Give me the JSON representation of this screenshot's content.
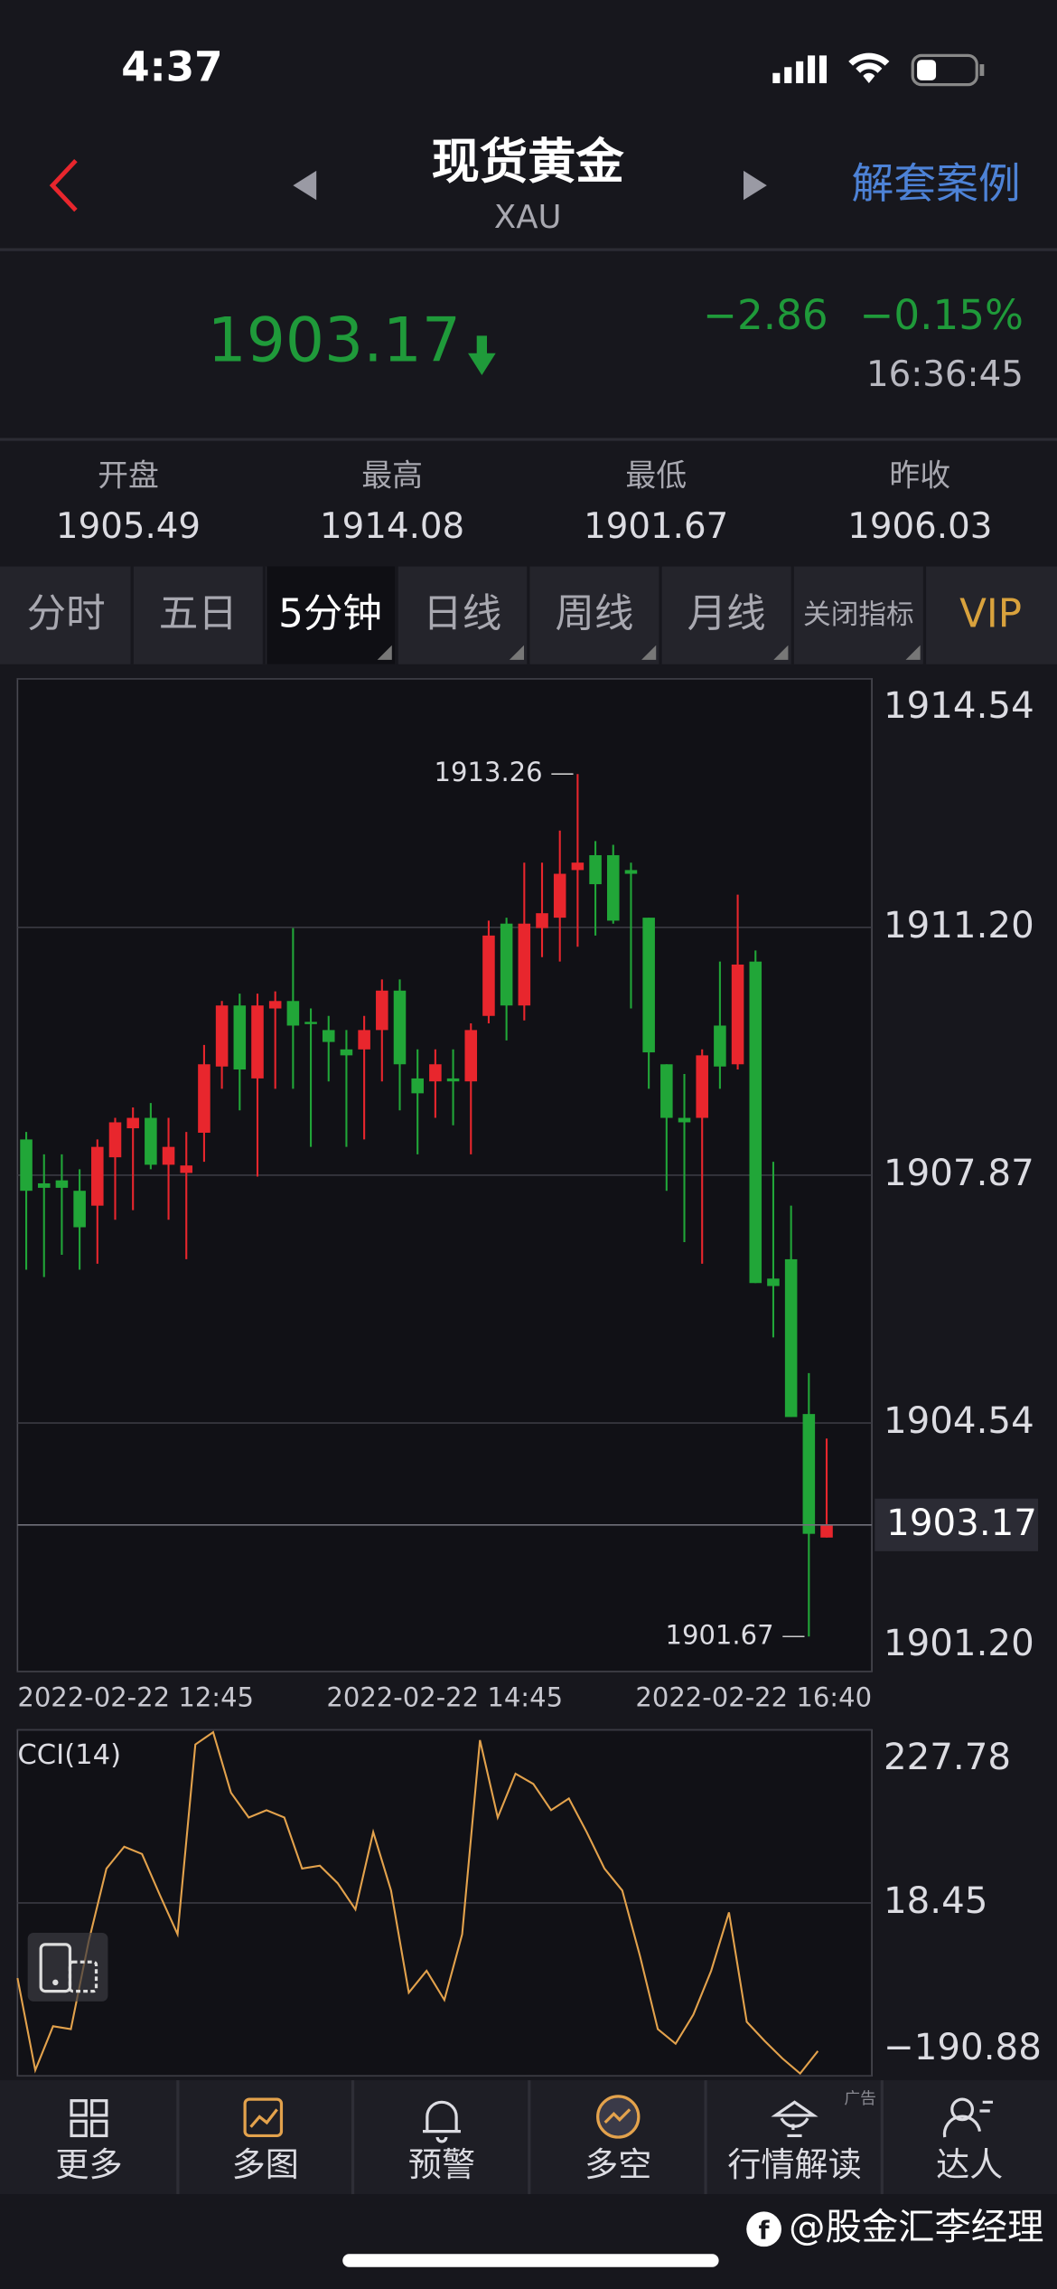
{
  "status_bar": {
    "time": "4:37"
  },
  "header": {
    "title": "现货黄金",
    "symbol": "XAU",
    "link": "解套案例"
  },
  "quote": {
    "price": "1903.17",
    "change": "−2.86",
    "change_pct": "−0.15%",
    "time": "16:36:45"
  },
  "stats": [
    {
      "label": "开盘",
      "value": "1905.49"
    },
    {
      "label": "最高",
      "value": "1914.08"
    },
    {
      "label": "最低",
      "value": "1901.67"
    },
    {
      "label": "昨收",
      "value": "1906.03"
    }
  ],
  "tabs": [
    "分时",
    "五日",
    "5分钟",
    "日线",
    "周线",
    "月线",
    "关闭指标",
    "VIP"
  ],
  "chart_data": [
    {
      "type": "candlestick",
      "x_tick_labels": [
        "2022-02-22 12:45",
        "2022-02-22 14:45",
        "2022-02-22 16:40"
      ],
      "up_color": "#e8262d",
      "down_color": "#21a638",
      "ylim": [
        1901.2,
        1914.54
      ],
      "yticks": [
        {
          "value": 1901.2,
          "label": "1901.20"
        },
        1904.54,
        1907.87,
        {
          "value": 1911.2,
          "label": "1911.20"
        },
        1914.54
      ],
      "grid": true,
      "open": [
        1908.35,
        1907.76,
        1907.8,
        1907.66,
        1907.46,
        1908.11,
        1908.5,
        1908.64,
        1908.01,
        1907.9,
        1908.44,
        1909.33,
        1910.15,
        1909.17,
        1910.11,
        1910.21,
        1909.93,
        1909.82,
        1909.56,
        1909.56,
        1909.82,
        1910.35,
        1909.17,
        1909.13,
        1909.17,
        1909.13,
        1910.01,
        1911.25,
        1910.15,
        1911.19,
        1911.33,
        1911.97,
        1912.17,
        1912.17,
        1911.97,
        1911.33,
        1909.36,
        1908.64,
        1908.64,
        1909.88,
        1909.36,
        1910.74,
        1906.48,
        1906.74,
        1904.66,
        1903.0
      ],
      "high": [
        1908.45,
        1908.15,
        1908.15,
        1907.95,
        1908.35,
        1908.64,
        1908.78,
        1908.84,
        1908.64,
        1908.45,
        1909.62,
        1910.21,
        1910.31,
        1910.31,
        1910.34,
        1911.19,
        1910.11,
        1910.01,
        1909.82,
        1910.01,
        1910.5,
        1910.5,
        1909.56,
        1909.56,
        1909.56,
        1909.91,
        1911.29,
        1911.33,
        1912.07,
        1912.07,
        1912.5,
        1913.26,
        1912.36,
        1912.31,
        1912.07,
        1911.33,
        1909.36,
        1909.23,
        1909.56,
        1910.74,
        1911.64,
        1910.89,
        1908.05,
        1907.46,
        1905.21,
        1904.33
      ],
      "low": [
        1906.6,
        1906.5,
        1906.8,
        1906.6,
        1906.68,
        1907.27,
        1907.4,
        1907.95,
        1907.27,
        1906.74,
        1908.05,
        1909.03,
        1908.74,
        1907.85,
        1909.03,
        1909.03,
        1908.25,
        1909.13,
        1908.25,
        1908.35,
        1909.13,
        1908.74,
        1908.15,
        1908.64,
        1908.54,
        1908.15,
        1909.91,
        1909.68,
        1909.95,
        1910.8,
        1910.74,
        1910.94,
        1911.09,
        1911.25,
        1910.11,
        1909.03,
        1907.66,
        1906.97,
        1906.68,
        1909.03,
        1909.29,
        1906.42,
        1905.69,
        1904.62,
        1901.67,
        1903.0
      ],
      "close": [
        1907.66,
        1907.7,
        1907.7,
        1907.17,
        1908.25,
        1908.58,
        1908.64,
        1908.01,
        1908.25,
        1908.0,
        1909.36,
        1910.15,
        1909.29,
        1910.15,
        1910.21,
        1909.88,
        1909.9,
        1909.66,
        1909.48,
        1909.82,
        1910.35,
        1909.36,
        1908.97,
        1909.36,
        1909.13,
        1909.82,
        1911.09,
        1910.15,
        1911.25,
        1911.39,
        1911.92,
        1912.07,
        1911.78,
        1911.29,
        1911.92,
        1909.52,
        1908.64,
        1908.58,
        1909.48,
        1909.33,
        1910.7,
        1906.42,
        1906.38,
        1904.62,
        1903.05,
        1903.17
      ]
    },
    {
      "type": "line",
      "series": [
        {
          "name": "CCI(14)",
          "color": "#e3a24c",
          "values": [
            -72.5,
            -184,
            -130.8,
            -134.3,
            -28.4,
            60.0,
            86.5,
            77.6,
            28.2,
            -19.5,
            210.1,
            225,
            151.8,
            121.8,
            130.6,
            121.8,
            60.0,
            63.5,
            42.3,
            10.5,
            104.1,
            33.5,
            -90.2,
            -63.7,
            -99.0,
            -19.5,
            215.4,
            121.8,
            174.8,
            162.4,
            130.6,
            144.7,
            104.1,
            60.0,
            33.5,
            -46.0,
            -134.3,
            -152.0,
            -116.7,
            -63.7,
            7.0,
            -125.5,
            -148.5,
            -169.7,
            -188,
            -160.9
          ]
        }
      ],
      "ylim": [
        -190.88,
        227.78
      ],
      "yticks": [
        {
          "value": -190.88,
          "label": "−190.88"
        },
        18.45,
        227.78
      ],
      "grid": true
    }
  ],
  "nav": [
    "更多",
    "多图",
    "预警",
    "多空",
    "行情解读",
    "达人"
  ],
  "ad_tag": "广告",
  "watermark": "@股金汇李经理"
}
